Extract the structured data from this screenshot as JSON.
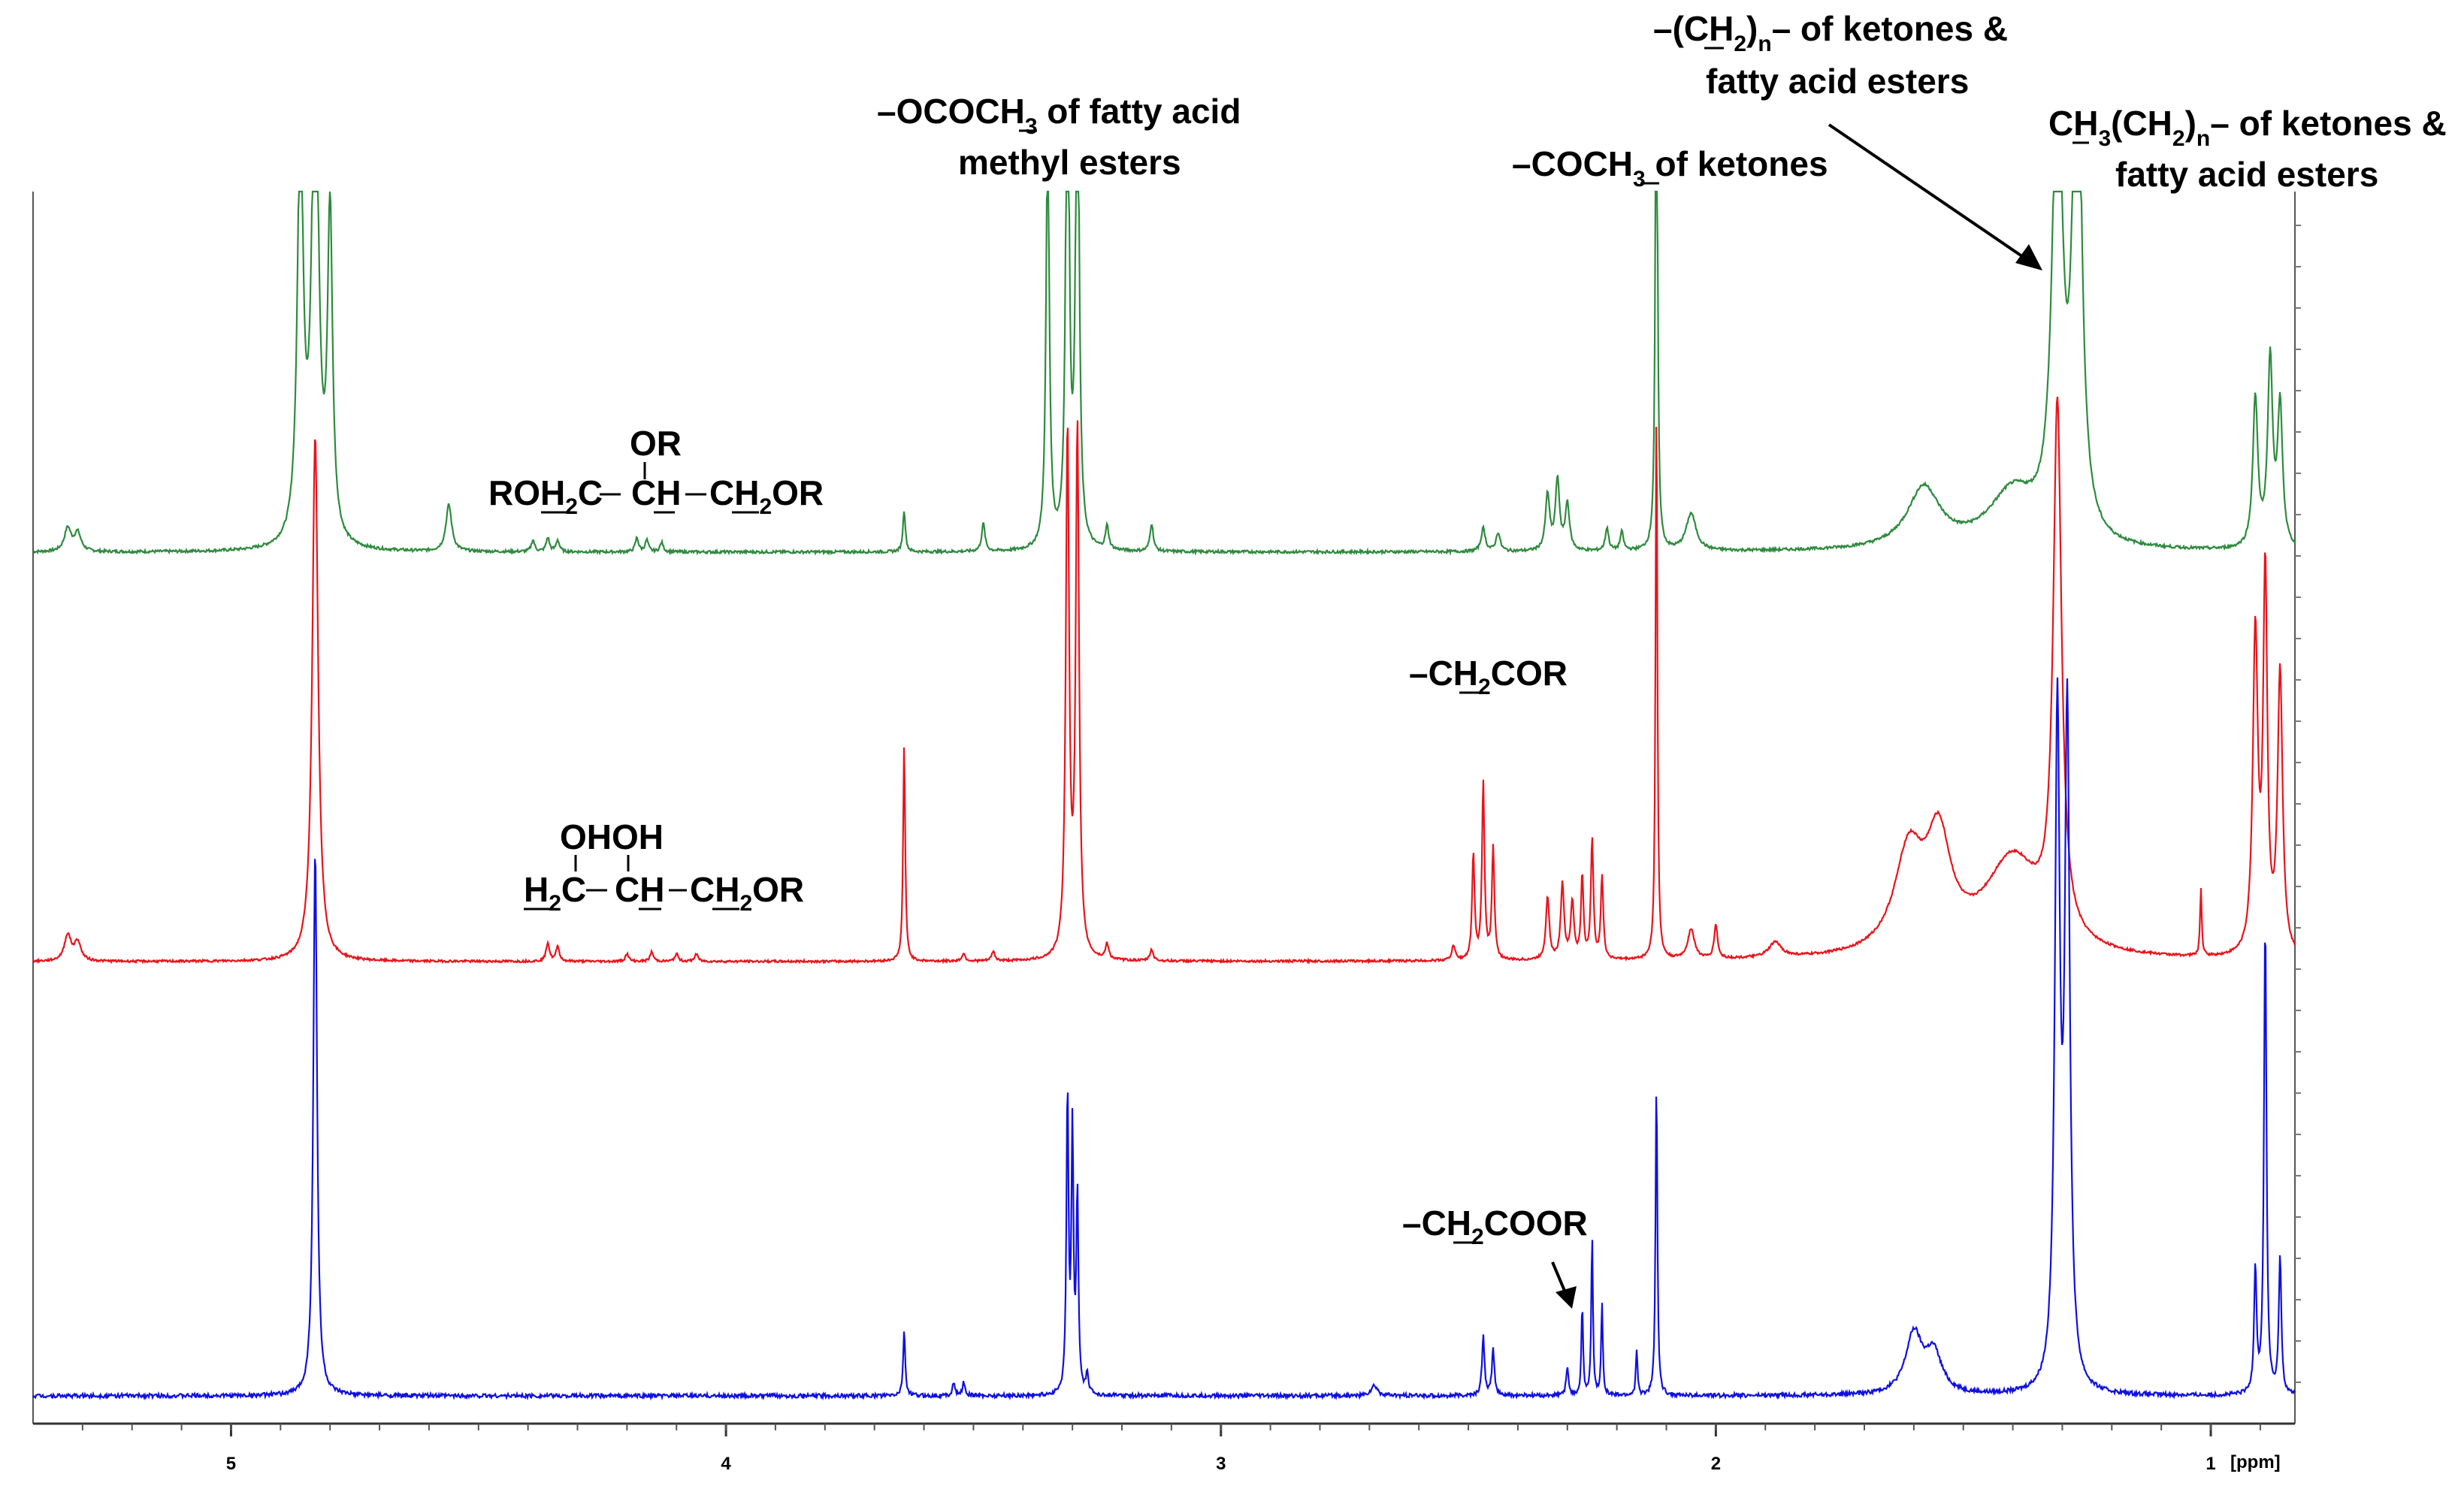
{
  "chart_data": {
    "type": "line",
    "title": "",
    "xlabel": "[ppm]",
    "ylabel": "",
    "x_reversed": true,
    "xlim": [
      5.4,
      0.83
    ],
    "xticks": [
      5,
      4,
      3,
      2,
      1
    ],
    "xtick_labels": [
      "5",
      "4",
      "3",
      "2",
      "1"
    ],
    "grid": false,
    "legend": "none",
    "series": [
      {
        "color": "#2e8b3e",
        "baseline": 0.0,
        "peaks": [
          {
            "x": 5.33,
            "h": 0.05,
            "w": 0.008
          },
          {
            "x": 5.31,
            "h": 0.04,
            "w": 0.008
          },
          {
            "x": 4.86,
            "h": 0.9,
            "w": 0.007
          },
          {
            "x": 4.83,
            "h": 1.1,
            "w": 0.008
          },
          {
            "x": 4.8,
            "h": 0.7,
            "w": 0.006
          },
          {
            "x": 4.56,
            "h": 0.1,
            "w": 0.007
          },
          {
            "x": 4.39,
            "h": 0.025,
            "w": 0.004
          },
          {
            "x": 4.36,
            "h": 0.03,
            "w": 0.004
          },
          {
            "x": 4.34,
            "h": 0.025,
            "w": 0.004
          },
          {
            "x": 4.18,
            "h": 0.03,
            "w": 0.004
          },
          {
            "x": 4.16,
            "h": 0.025,
            "w": 0.004
          },
          {
            "x": 4.13,
            "h": 0.02,
            "w": 0.004
          },
          {
            "x": 3.64,
            "h": 0.09,
            "w": 0.003
          },
          {
            "x": 3.48,
            "h": 0.06,
            "w": 0.004
          },
          {
            "x": 3.35,
            "h": 0.9,
            "w": 0.004
          },
          {
            "x": 3.31,
            "h": 1.2,
            "w": 0.004
          },
          {
            "x": 3.29,
            "h": 1.2,
            "w": 0.004
          },
          {
            "x": 3.23,
            "h": 0.05,
            "w": 0.004
          },
          {
            "x": 3.14,
            "h": 0.06,
            "w": 0.004
          },
          {
            "x": 2.47,
            "h": 0.05,
            "w": 0.005
          },
          {
            "x": 2.44,
            "h": 0.04,
            "w": 0.005
          },
          {
            "x": 2.34,
            "h": 0.12,
            "w": 0.005
          },
          {
            "x": 2.32,
            "h": 0.15,
            "w": 0.005
          },
          {
            "x": 2.3,
            "h": 0.1,
            "w": 0.005
          },
          {
            "x": 2.22,
            "h": 0.05,
            "w": 0.004
          },
          {
            "x": 2.19,
            "h": 0.04,
            "w": 0.004
          },
          {
            "x": 2.12,
            "h": 1.3,
            "w": 0.0025
          },
          {
            "x": 2.05,
            "h": 0.08,
            "w": 0.012
          },
          {
            "x": 1.58,
            "h": 0.13,
            "w": 0.04
          },
          {
            "x": 1.4,
            "h": 0.12,
            "w": 0.06
          },
          {
            "x": 1.31,
            "h": 1.0,
            "w": 0.012
          },
          {
            "x": 1.27,
            "h": 1.2,
            "w": 0.01
          },
          {
            "x": 0.91,
            "h": 0.32,
            "w": 0.006
          },
          {
            "x": 0.88,
            "h": 0.4,
            "w": 0.006
          },
          {
            "x": 0.86,
            "h": 0.3,
            "w": 0.006
          }
        ]
      },
      {
        "color": "#e8141c",
        "baseline": 0.0,
        "peaks": [
          {
            "x": 5.33,
            "h": 0.07,
            "w": 0.008
          },
          {
            "x": 5.31,
            "h": 0.05,
            "w": 0.008
          },
          {
            "x": 4.83,
            "h": 1.4,
            "w": 0.007
          },
          {
            "x": 4.36,
            "h": 0.05,
            "w": 0.004
          },
          {
            "x": 4.34,
            "h": 0.04,
            "w": 0.004
          },
          {
            "x": 4.2,
            "h": 0.02,
            "w": 0.004
          },
          {
            "x": 4.15,
            "h": 0.025,
            "w": 0.004
          },
          {
            "x": 4.1,
            "h": 0.02,
            "w": 0.004
          },
          {
            "x": 4.06,
            "h": 0.02,
            "w": 0.004
          },
          {
            "x": 3.64,
            "h": 0.58,
            "w": 0.0025
          },
          {
            "x": 3.52,
            "h": 0.02,
            "w": 0.004
          },
          {
            "x": 3.46,
            "h": 0.025,
            "w": 0.004
          },
          {
            "x": 3.31,
            "h": 1.4,
            "w": 0.004
          },
          {
            "x": 3.29,
            "h": 1.4,
            "w": 0.004
          },
          {
            "x": 3.23,
            "h": 0.04,
            "w": 0.004
          },
          {
            "x": 3.14,
            "h": 0.03,
            "w": 0.004
          },
          {
            "x": 2.53,
            "h": 0.04,
            "w": 0.004
          },
          {
            "x": 2.49,
            "h": 0.28,
            "w": 0.003
          },
          {
            "x": 2.47,
            "h": 0.47,
            "w": 0.003
          },
          {
            "x": 2.45,
            "h": 0.3,
            "w": 0.003
          },
          {
            "x": 2.34,
            "h": 0.17,
            "w": 0.004
          },
          {
            "x": 2.31,
            "h": 0.2,
            "w": 0.004
          },
          {
            "x": 2.29,
            "h": 0.15,
            "w": 0.004
          },
          {
            "x": 2.27,
            "h": 0.22,
            "w": 0.003
          },
          {
            "x": 2.25,
            "h": 0.32,
            "w": 0.003
          },
          {
            "x": 2.23,
            "h": 0.22,
            "w": 0.003
          },
          {
            "x": 2.12,
            "h": 1.5,
            "w": 0.0022
          },
          {
            "x": 2.05,
            "h": 0.08,
            "w": 0.008
          },
          {
            "x": 2.0,
            "h": 0.09,
            "w": 0.004
          },
          {
            "x": 1.88,
            "h": 0.04,
            "w": 0.015
          },
          {
            "x": 1.61,
            "h": 0.26,
            "w": 0.035
          },
          {
            "x": 1.55,
            "h": 0.28,
            "w": 0.03
          },
          {
            "x": 1.4,
            "h": 0.26,
            "w": 0.07
          },
          {
            "x": 1.31,
            "h": 1.4,
            "w": 0.01
          },
          {
            "x": 1.02,
            "h": 0.18,
            "w": 0.002
          },
          {
            "x": 0.91,
            "h": 0.85,
            "w": 0.006
          },
          {
            "x": 0.89,
            "h": 1.0,
            "w": 0.005
          },
          {
            "x": 0.86,
            "h": 0.75,
            "w": 0.006
          }
        ]
      },
      {
        "color": "#1010e0",
        "baseline": 0.0,
        "peaks": [
          {
            "x": 4.83,
            "h": 0.83,
            "w": 0.0045
          },
          {
            "x": 3.64,
            "h": 0.1,
            "w": 0.0025
          },
          {
            "x": 3.54,
            "h": 0.02,
            "w": 0.003
          },
          {
            "x": 3.52,
            "h": 0.02,
            "w": 0.003
          },
          {
            "x": 3.31,
            "h": 0.46,
            "w": 0.0025
          },
          {
            "x": 3.3,
            "h": 0.39,
            "w": 0.0025
          },
          {
            "x": 3.29,
            "h": 0.3,
            "w": 0.0025
          },
          {
            "x": 3.27,
            "h": 0.03,
            "w": 0.003
          },
          {
            "x": 2.69,
            "h": 0.015,
            "w": 0.008
          },
          {
            "x": 2.47,
            "h": 0.09,
            "w": 0.003
          },
          {
            "x": 2.45,
            "h": 0.07,
            "w": 0.003
          },
          {
            "x": 2.3,
            "h": 0.04,
            "w": 0.003
          },
          {
            "x": 2.27,
            "h": 0.14,
            "w": 0.002
          },
          {
            "x": 2.25,
            "h": 0.24,
            "w": 0.002
          },
          {
            "x": 2.23,
            "h": 0.14,
            "w": 0.002
          },
          {
            "x": 2.16,
            "h": 0.07,
            "w": 0.002
          },
          {
            "x": 2.12,
            "h": 0.48,
            "w": 0.0022
          },
          {
            "x": 1.6,
            "h": 0.09,
            "w": 0.02
          },
          {
            "x": 1.56,
            "h": 0.06,
            "w": 0.02
          },
          {
            "x": 1.31,
            "h": 1.0,
            "w": 0.006
          },
          {
            "x": 1.29,
            "h": 1.0,
            "w": 0.006
          },
          {
            "x": 0.91,
            "h": 0.19,
            "w": 0.003
          },
          {
            "x": 0.89,
            "h": 0.72,
            "w": 0.003
          },
          {
            "x": 0.86,
            "h": 0.21,
            "w": 0.003
          }
        ]
      }
    ],
    "annotations": {
      "ococh3_line1": "–OCOCH",
      "ococh3_line1_sub": "3",
      "ococh3_line1_tail": " of fatty acid",
      "ococh3_line2": "methyl esters",
      "coch3_a": "–COCH",
      "coch3_sub": "3",
      "coch3_b": " of ketones",
      "ch2n_a": "–(CH",
      "ch2n_sub": "2",
      "ch2n_b": ")",
      "ch2n_sub2": "n",
      "ch2n_c": "– of  ketones &",
      "ch2n_line2": "fatty acid esters",
      "ch3_a": "CH",
      "ch3_sub": "3",
      "ch3_b": "(CH",
      "ch3_sub2": "2",
      "ch3_c": ")",
      "ch3_sub3": "n",
      "ch3_d": "– of ketones &",
      "ch3_line2": "fatty acid esters",
      "tag_or": "OR",
      "tag_roh2c_a": "ROH",
      "tag_roh2c_sub": "2",
      "tag_roh2c_b": "C",
      "tag_ch": "CH",
      "tag_ch2or_a": "CH",
      "tag_ch2or_sub": "2",
      "tag_ch2or_b": "OR",
      "ch2cor_a": "–CH",
      "ch2cor_sub": "2",
      "ch2cor_b": "COR",
      "dag_ohoh": "OHOH",
      "dag_h2c_a": "H",
      "dag_h2c_sub": "2",
      "dag_h2c_b": "C",
      "dag_ch": "CH",
      "dag_ch2or_a": "CH",
      "dag_ch2or_sub": "2",
      "dag_ch2or_b": "OR",
      "ch2coor_a": "–CH",
      "ch2coor_sub": "2",
      "ch2coor_b": "COOR"
    }
  }
}
